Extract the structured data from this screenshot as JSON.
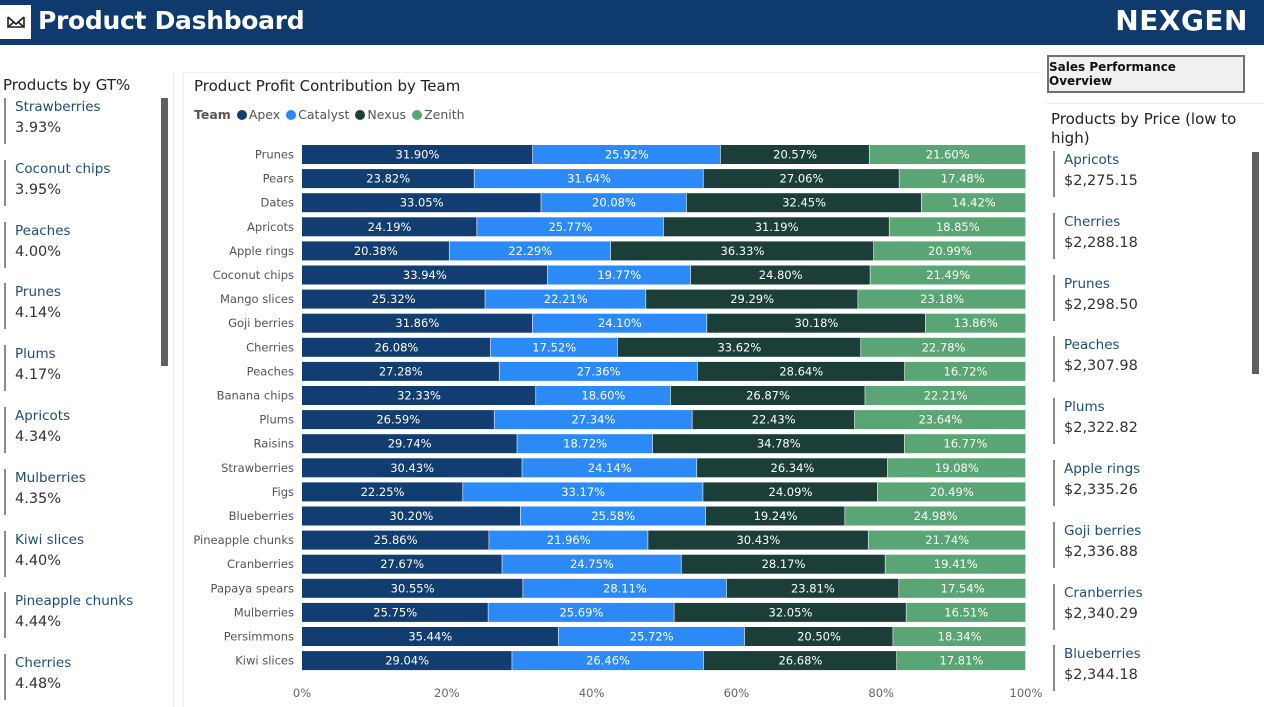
{
  "header": {
    "title": "Product Dashboard",
    "brand": "NEXGEN",
    "background": "#0f3a6e"
  },
  "left_panel": {
    "title": "Products by GT%",
    "items": [
      {
        "name": "Strawberries",
        "value": "3.93%"
      },
      {
        "name": "Coconut chips",
        "value": "3.95%"
      },
      {
        "name": "Peaches",
        "value": "4.00%"
      },
      {
        "name": "Prunes",
        "value": "4.14%"
      },
      {
        "name": "Plums",
        "value": "4.17%"
      },
      {
        "name": "Apricots",
        "value": "4.34%"
      },
      {
        "name": "Mulberries",
        "value": "4.35%"
      },
      {
        "name": "Kiwi slices",
        "value": "4.40%"
      },
      {
        "name": "Pineapple chunks",
        "value": "4.44%"
      },
      {
        "name": "Cherries",
        "value": "4.48%"
      }
    ]
  },
  "button": {
    "label": "Sales Performance Overview"
  },
  "right_panel": {
    "title": "Products by Price (low to high)",
    "items": [
      {
        "name": "Apricots",
        "value": "$2,275.15"
      },
      {
        "name": "Cherries",
        "value": "$2,288.18"
      },
      {
        "name": "Prunes",
        "value": "$2,298.50"
      },
      {
        "name": "Peaches",
        "value": "$2,307.98"
      },
      {
        "name": "Plums",
        "value": "$2,322.82"
      },
      {
        "name": "Apple rings",
        "value": "$2,335.26"
      },
      {
        "name": "Goji berries",
        "value": "$2,336.88"
      },
      {
        "name": "Cranberries",
        "value": "$2,340.29"
      },
      {
        "name": "Blueberries",
        "value": "$2,344.18"
      }
    ]
  },
  "chart_data": {
    "type": "bar",
    "orientation": "horizontal",
    "stacked": "100%",
    "title": "Product Profit Contribution by Team",
    "legend_title": "Team",
    "legend_position": "top-left",
    "categories": [
      "Prunes",
      "Pears",
      "Dates",
      "Apricots",
      "Apple rings",
      "Coconut chips",
      "Mango slices",
      "Goji berries",
      "Cherries",
      "Peaches",
      "Banana chips",
      "Plums",
      "Raisins",
      "Strawberries",
      "Figs",
      "Blueberries",
      "Pineapple chunks",
      "Cranberries",
      "Papaya spears",
      "Mulberries",
      "Persimmons",
      "Kiwi slices"
    ],
    "series": [
      {
        "name": "Apex",
        "color": "#123d70",
        "values": [
          31.9,
          23.82,
          33.05,
          24.19,
          20.38,
          33.94,
          25.32,
          31.86,
          26.08,
          27.28,
          32.33,
          26.59,
          29.74,
          30.43,
          22.25,
          30.2,
          25.86,
          27.67,
          30.55,
          25.75,
          35.44,
          29.04
        ]
      },
      {
        "name": "Catalyst",
        "color": "#2b8af7",
        "values": [
          25.92,
          31.64,
          20.08,
          25.77,
          22.29,
          19.77,
          22.21,
          24.1,
          17.52,
          27.36,
          18.6,
          27.34,
          18.72,
          24.14,
          33.17,
          25.58,
          21.96,
          24.75,
          28.11,
          25.69,
          25.72,
          26.46
        ]
      },
      {
        "name": "Nexus",
        "color": "#1b3f38",
        "values": [
          20.57,
          27.06,
          32.45,
          31.19,
          36.33,
          24.8,
          29.29,
          30.18,
          33.62,
          28.64,
          26.87,
          22.43,
          34.78,
          26.34,
          24.09,
          19.24,
          30.43,
          28.17,
          23.81,
          32.05,
          20.5,
          26.68
        ]
      },
      {
        "name": "Zenith",
        "color": "#5aa574",
        "values": [
          21.6,
          17.48,
          14.42,
          18.85,
          20.99,
          21.49,
          23.18,
          13.86,
          22.78,
          16.72,
          22.21,
          23.64,
          16.77,
          19.08,
          20.49,
          24.98,
          21.74,
          19.41,
          17.54,
          16.51,
          18.34,
          17.81
        ]
      }
    ],
    "x_ticks": [
      "0%",
      "20%",
      "40%",
      "60%",
      "80%",
      "100%"
    ],
    "xlim": [
      0,
      100
    ],
    "grid": false
  }
}
